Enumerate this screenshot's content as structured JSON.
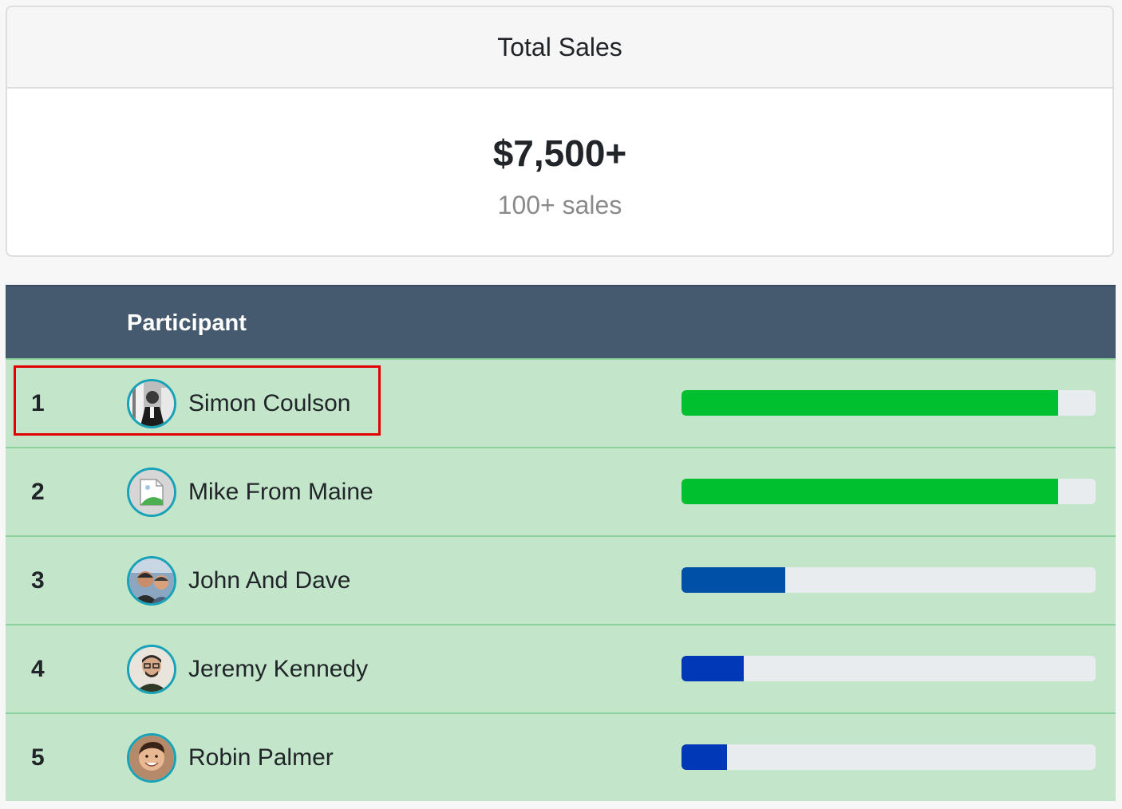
{
  "summary": {
    "title": "Total Sales",
    "amount": "$7,500+",
    "count": "100+ sales"
  },
  "leaderboard": {
    "column_participant": "Participant",
    "rows": [
      {
        "rank": "1",
        "name": "Simon Coulson",
        "avatar_icon": "photo-bw-avatar-icon",
        "progress": 0.91,
        "bar_color": "#00c030"
      },
      {
        "rank": "2",
        "name": "Mike From Maine",
        "avatar_icon": "placeholder-image-icon",
        "progress": 0.91,
        "bar_color": "#00c030"
      },
      {
        "rank": "3",
        "name": "John And Dave",
        "avatar_icon": "two-people-avatar-icon",
        "progress": 0.25,
        "bar_color": "#0050a8"
      },
      {
        "rank": "4",
        "name": "Jeremy Kennedy",
        "avatar_icon": "person-avatar-icon",
        "progress": 0.15,
        "bar_color": "#0038b8"
      },
      {
        "rank": "5",
        "name": "Robin Palmer",
        "avatar_icon": "person-avatar-icon",
        "progress": 0.11,
        "bar_color": "#0038b8"
      }
    ]
  },
  "colors": {
    "header_bg": "#455a6f",
    "row_bg": "#c3e6cb",
    "avatar_ring": "#17a2b8",
    "highlight_border": "#e00000"
  }
}
